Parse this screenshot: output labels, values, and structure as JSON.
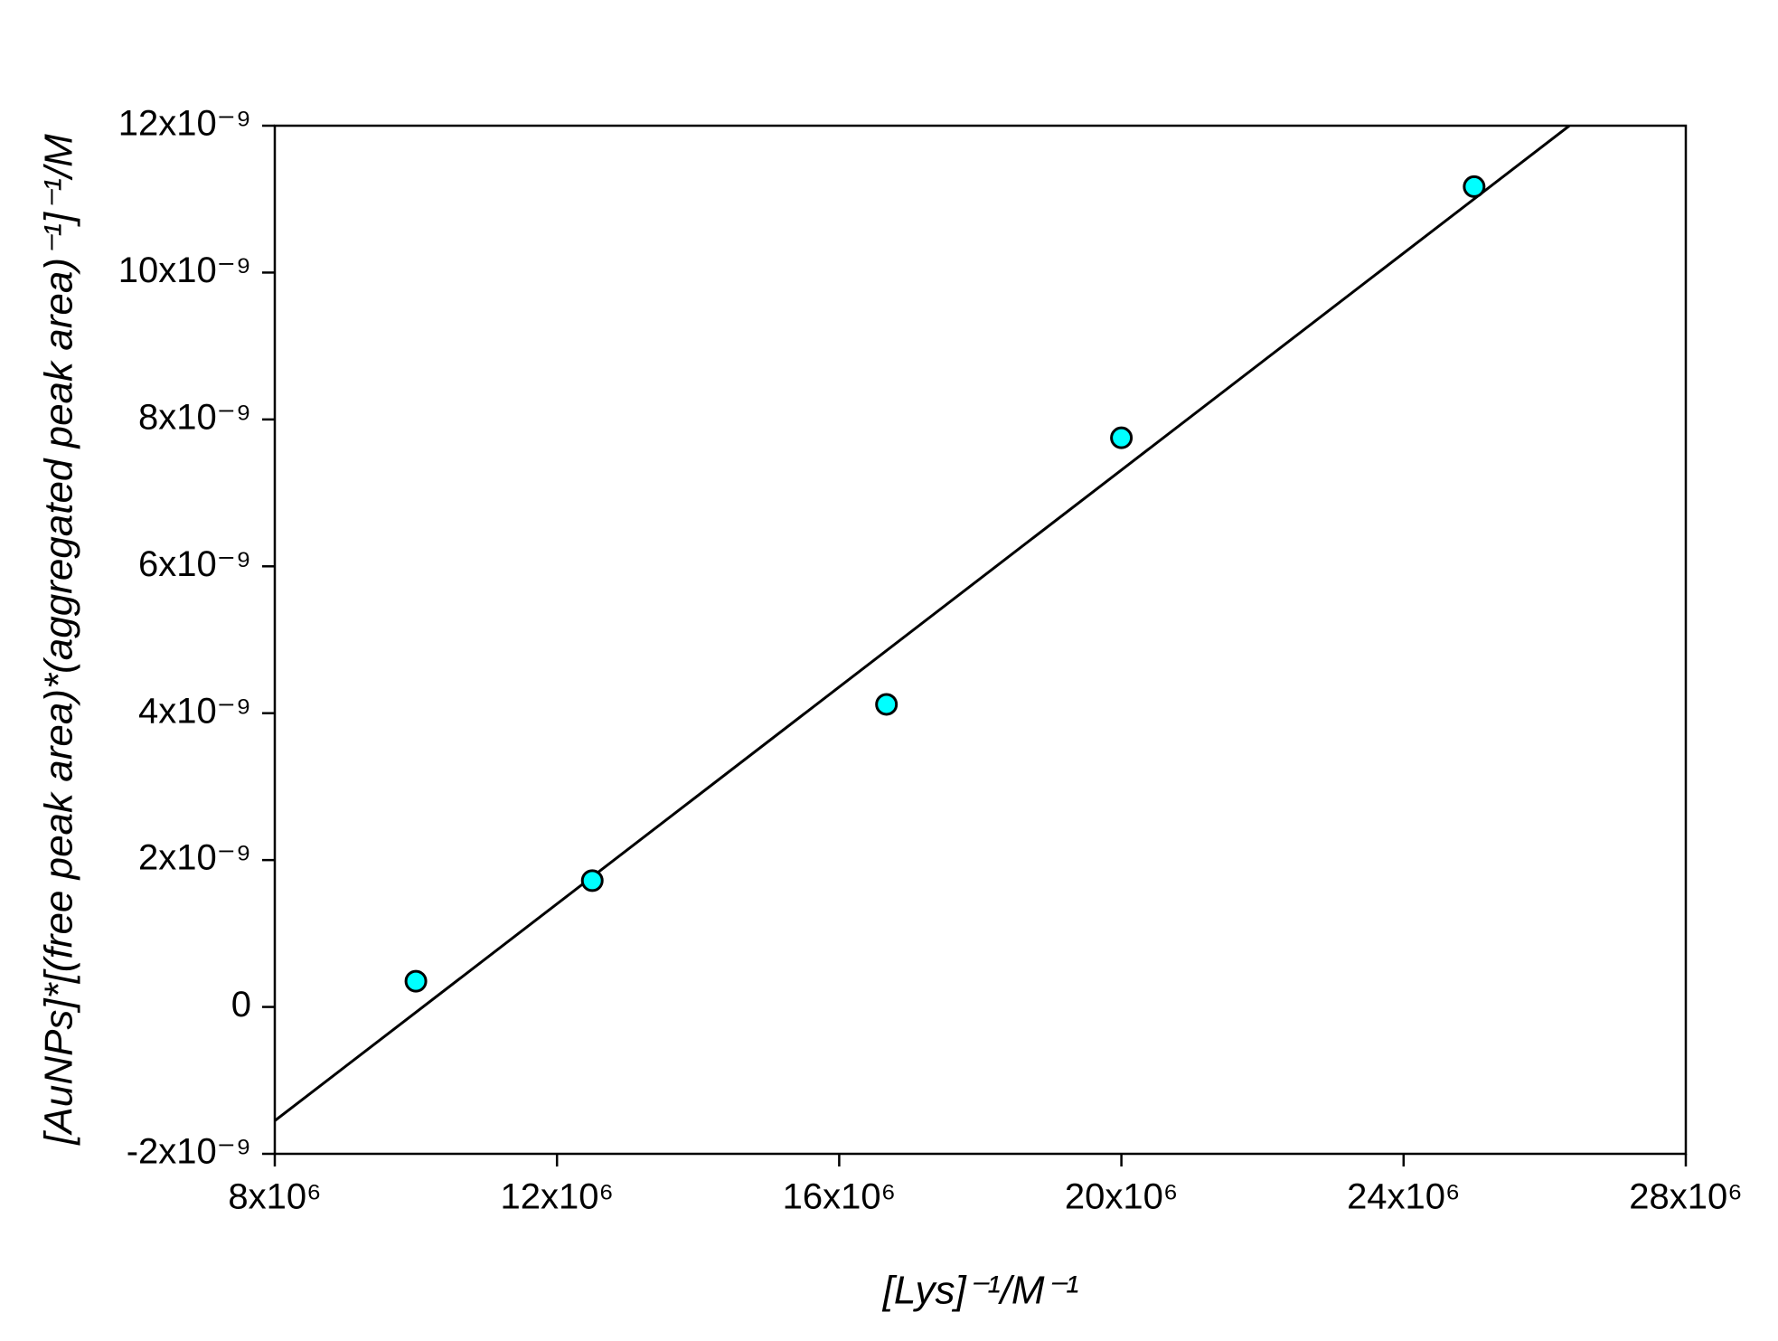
{
  "chart_data": {
    "type": "scatter",
    "xlabel": "[Lys]⁻¹/M⁻¹",
    "ylabel": "[AuNPs]*[(free peak area)*(aggregated peak area)⁻¹]⁻¹/M",
    "series": [
      {
        "kind": "scatter",
        "color": "#00ffff",
        "x": [
          10000000,
          12500000,
          16670000,
          20000000,
          25000000
        ],
        "values": [
          3.5e-10,
          1.72e-09,
          4.12e-09,
          7.75e-09,
          1.117e-08
        ]
      },
      {
        "kind": "line",
        "color": "#000000",
        "x": [
          8000000,
          26350000
        ],
        "values": [
          -1.55e-09,
          1.2e-08
        ]
      }
    ],
    "xlim": [
      8000000,
      28000000
    ],
    "ylim": [
      -2e-09,
      1.2e-08
    ],
    "xticks": [
      {
        "value": 8000000,
        "label": "8x10⁶"
      },
      {
        "value": 12000000,
        "label": "12x10⁶"
      },
      {
        "value": 16000000,
        "label": "16x10⁶"
      },
      {
        "value": 20000000,
        "label": "20x10⁶"
      },
      {
        "value": 24000000,
        "label": "24x10⁶"
      },
      {
        "value": 28000000,
        "label": "28x10⁶"
      }
    ],
    "yticks": [
      {
        "value": -2e-09,
        "label": "-2x10⁻⁹"
      },
      0,
      {
        "value": 2e-09,
        "label": "2x10⁻⁹"
      },
      {
        "value": 4e-09,
        "label": "4x10⁻⁹"
      },
      {
        "value": 6e-09,
        "label": "6x10⁻⁹"
      },
      {
        "value": 8e-09,
        "label": "8x10⁻⁹"
      },
      {
        "value": 1e-08,
        "label": "10x10⁻⁹"
      },
      {
        "value": 1.2e-08,
        "label": "12x10⁻⁹"
      }
    ],
    "grid": false
  }
}
